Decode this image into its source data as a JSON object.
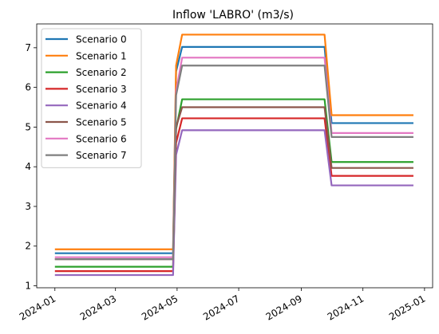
{
  "chart_data": {
    "type": "line",
    "title": "Inflow 'LABRO' (m3/s)",
    "xlabel": "",
    "ylabel": "",
    "x_axis": "date",
    "xlim": [
      "2023-12-14",
      "2025-01-09"
    ],
    "ylim": [
      0.95,
      7.6
    ],
    "x_ticks": [
      "2024-01",
      "2024-03",
      "2024-05",
      "2024-07",
      "2024-09",
      "2024-11",
      "2025-01"
    ],
    "y_ticks": [
      1,
      2,
      3,
      4,
      5,
      6,
      7
    ],
    "grid": false,
    "legend_position": "upper-left",
    "x": [
      "2024-01-01",
      "2024-04-27",
      "2024-04-30",
      "2024-05-06",
      "2024-09-24",
      "2024-10-01",
      "2024-12-21"
    ],
    "series": [
      {
        "name": "Scenario 0",
        "color": "#1f77b4",
        "values": [
          1.82,
          1.82,
          6.4,
          7.02,
          7.02,
          5.1,
          5.1
        ]
      },
      {
        "name": "Scenario 1",
        "color": "#ff7f0e",
        "values": [
          1.92,
          1.92,
          6.55,
          7.33,
          7.33,
          5.3,
          5.3
        ]
      },
      {
        "name": "Scenario 2",
        "color": "#2ca02c",
        "values": [
          1.48,
          1.48,
          4.95,
          5.7,
          5.7,
          4.12,
          4.12
        ]
      },
      {
        "name": "Scenario 3",
        "color": "#d62728",
        "values": [
          1.37,
          1.37,
          4.6,
          5.22,
          5.22,
          3.77,
          3.77
        ]
      },
      {
        "name": "Scenario 4",
        "color": "#9467bd",
        "values": [
          1.27,
          1.27,
          4.3,
          4.92,
          4.92,
          3.53,
          3.53
        ]
      },
      {
        "name": "Scenario 5",
        "color": "#8c564b",
        "values": [
          1.67,
          1.67,
          5.0,
          5.5,
          5.5,
          3.97,
          3.97
        ]
      },
      {
        "name": "Scenario 6",
        "color": "#e377c2",
        "values": [
          1.72,
          1.72,
          5.9,
          6.75,
          6.75,
          4.85,
          4.85
        ]
      },
      {
        "name": "Scenario 7",
        "color": "#7f7f7f",
        "values": [
          1.67,
          1.67,
          5.8,
          6.55,
          6.55,
          4.75,
          4.75
        ]
      }
    ]
  }
}
